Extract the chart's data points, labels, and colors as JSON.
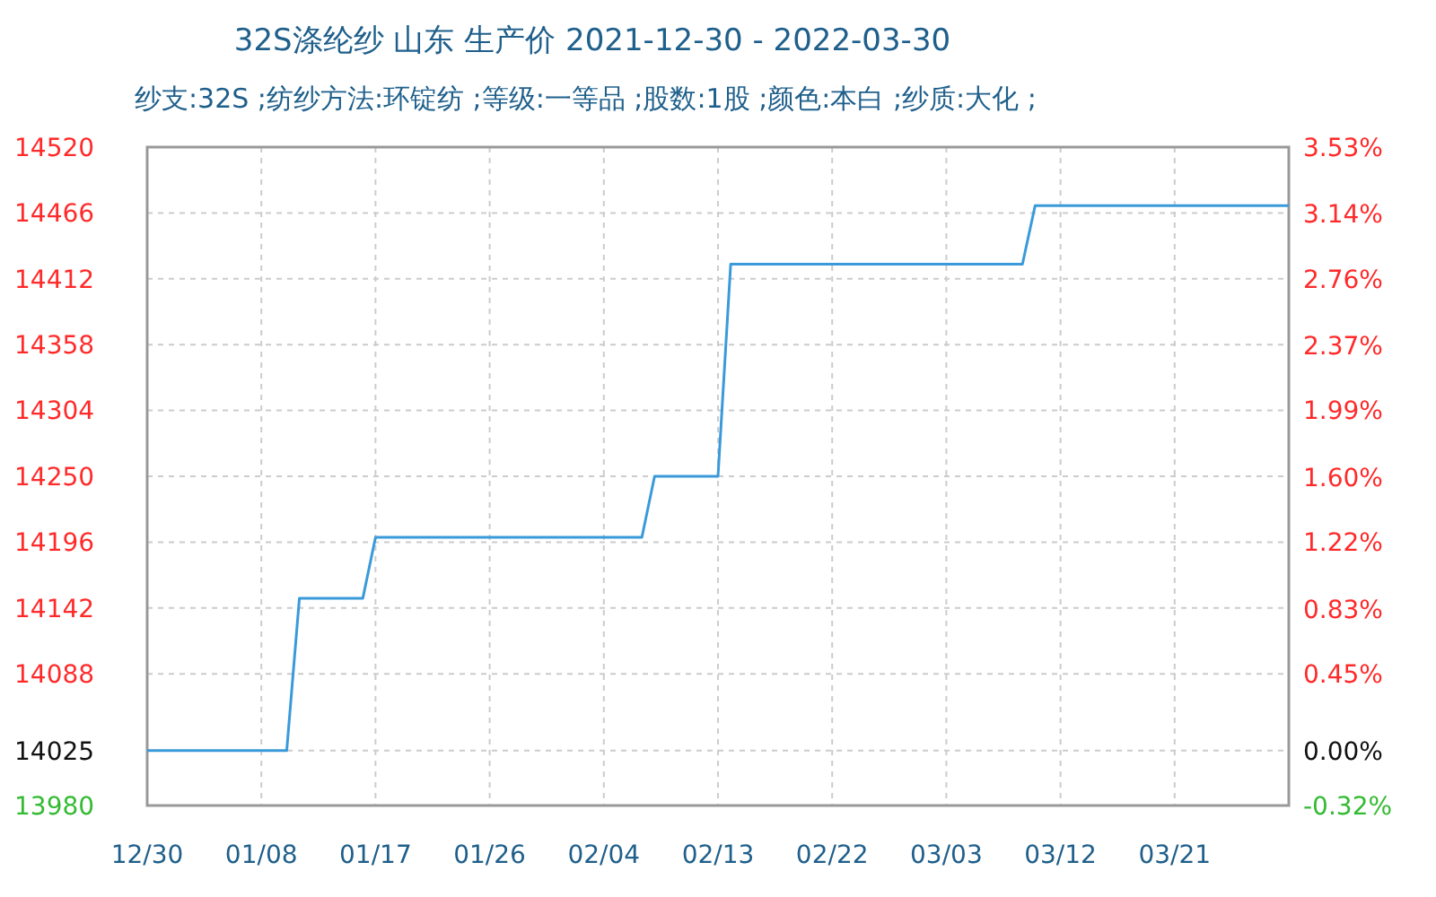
{
  "chart_data": {
    "type": "line",
    "title": "32S涤纶纱 山东 生产价 2021-12-30 - 2022-03-30",
    "subtitle": "纱支:32S ;纺纱方法:环锭纺 ;等级:一等品 ;股数:1股 ;颜色:本白 ;纱质:大化 ;",
    "x": [
      "2021-12-30",
      "2022-01-10",
      "2022-01-11",
      "2022-01-16",
      "2022-01-17",
      "2022-02-07",
      "2022-02-08",
      "2022-02-13",
      "2022-02-14",
      "2022-03-09",
      "2022-03-10",
      "2022-03-30"
    ],
    "series": [
      {
        "color": "#3a9ad9",
        "values": [
          14025,
          14025,
          14150,
          14150,
          14200,
          14200,
          14250,
          14250,
          14424,
          14424,
          14472,
          14472
        ]
      }
    ],
    "xlim": [
      "2021-12-30",
      "2022-03-30"
    ],
    "xticks": [
      {
        "value": "2021-12-30",
        "label": "12/30"
      },
      {
        "value": "2022-01-08",
        "label": "01/08"
      },
      {
        "value": "2022-01-17",
        "label": "01/17"
      },
      {
        "value": "2022-01-26",
        "label": "01/26"
      },
      {
        "value": "2022-02-04",
        "label": "02/04"
      },
      {
        "value": "2022-02-13",
        "label": "02/13"
      },
      {
        "value": "2022-02-22",
        "label": "02/22"
      },
      {
        "value": "2022-03-03",
        "label": "03/03"
      },
      {
        "value": "2022-03-12",
        "label": "03/12"
      },
      {
        "value": "2022-03-21",
        "label": "03/21"
      }
    ],
    "ylim": [
      13980,
      14520
    ],
    "yticks": [
      13980,
      14025,
      14088,
      14142,
      14196,
      14250,
      14304,
      14358,
      14412,
      14466,
      14520
    ],
    "y2lim": [
      -0.32,
      3.53
    ],
    "y2ticks": [
      {
        "value": -0.32,
        "label": "-0.32%"
      },
      {
        "value": 0,
        "label": "0.00%"
      },
      {
        "value": 0.45,
        "label": "0.45%"
      },
      {
        "value": 0.83,
        "label": "0.83%"
      },
      {
        "value": 1.22,
        "label": "1.22%"
      },
      {
        "value": 1.6,
        "label": "1.60%"
      },
      {
        "value": 1.99,
        "label": "1.99%"
      },
      {
        "value": 2.37,
        "label": "2.37%"
      },
      {
        "value": 2.76,
        "label": "2.76%"
      },
      {
        "value": 3.14,
        "label": "3.14%"
      },
      {
        "value": 3.53,
        "label": "3.53%"
      }
    ],
    "grid": true,
    "line_style": "solid"
  }
}
